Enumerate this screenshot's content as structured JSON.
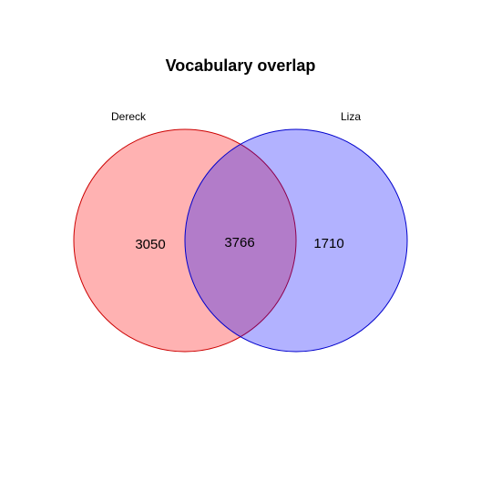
{
  "diagram": {
    "type": "venn",
    "title": "Vocabulary overlap",
    "sets": [
      {
        "name": "Dereck",
        "fill": "#ff0000",
        "stroke": "#cc0000"
      },
      {
        "name": "Liza",
        "fill": "#0000ff",
        "stroke": "#0000cc"
      }
    ],
    "counts": {
      "only_left": "3050",
      "overlap": "3766",
      "only_right": "1710"
    }
  }
}
